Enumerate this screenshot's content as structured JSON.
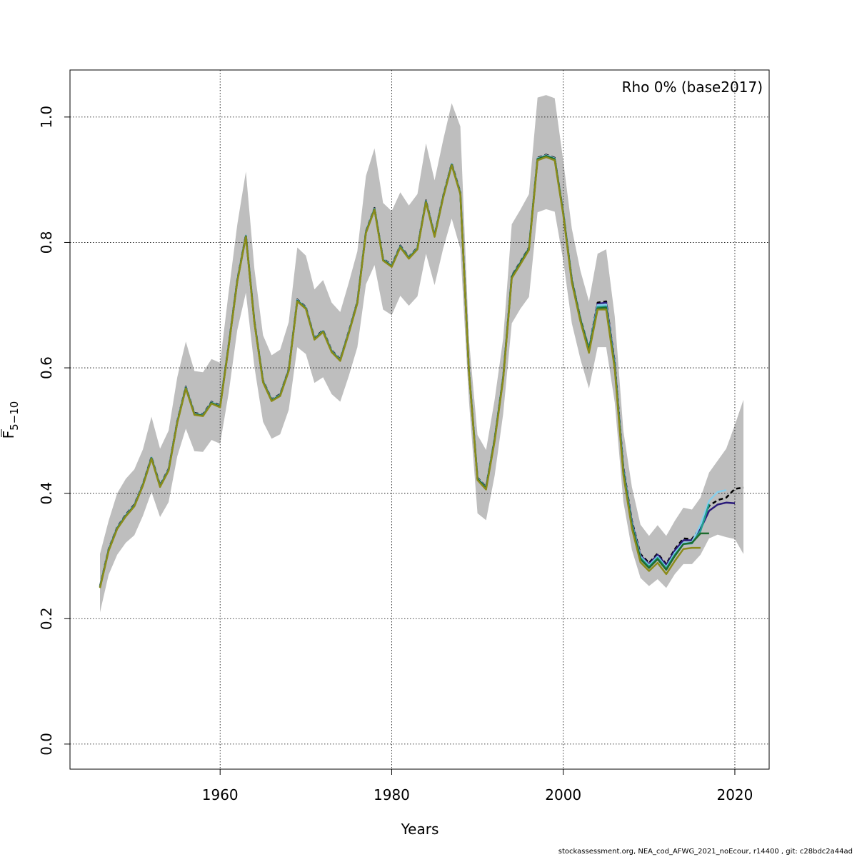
{
  "chart_data": {
    "type": "line",
    "title": "",
    "annotation": "Rho 0% (base2017)",
    "xlabel": "Years",
    "ylabel_main": "F",
    "ylabel_sub": "5−10",
    "xlim": [
      1942.5,
      2024.0
    ],
    "ylim": [
      -0.04,
      1.075
    ],
    "xticks": [
      1960,
      1980,
      2000,
      2020
    ],
    "xtick_labels": [
      "1960",
      "1980",
      "2000",
      "2020"
    ],
    "yticks": [
      0.0,
      0.2,
      0.4,
      0.6,
      0.8,
      1.0
    ],
    "ytick_labels": [
      "0.0",
      "0.2",
      "0.4",
      "0.6",
      "0.8",
      "1.0"
    ],
    "grid": true,
    "band": {
      "color": "#bebebe",
      "x": [
        1946,
        1947,
        1948,
        1949,
        1950,
        1951,
        1952,
        1953,
        1954,
        1955,
        1956,
        1957,
        1958,
        1959,
        1960,
        1961,
        1962,
        1963,
        1964,
        1965,
        1966,
        1967,
        1968,
        1969,
        1970,
        1971,
        1972,
        1973,
        1974,
        1975,
        1976,
        1977,
        1978,
        1979,
        1980,
        1981,
        1982,
        1983,
        1984,
        1985,
        1986,
        1987,
        1988,
        1989,
        1990,
        1991,
        1992,
        1993,
        1994,
        1995,
        1996,
        1997,
        1998,
        1999,
        2000,
        2001,
        2002,
        2003,
        2004,
        2005,
        2006,
        2007,
        2008,
        2009,
        2010,
        2011,
        2012,
        2013,
        2014,
        2015,
        2016,
        2017,
        2018,
        2019,
        2020,
        2021
      ],
      "upper": [
        0.303,
        0.356,
        0.4,
        0.423,
        0.438,
        0.47,
        0.522,
        0.471,
        0.5,
        0.585,
        0.642,
        0.595,
        0.593,
        0.614,
        0.608,
        0.721,
        0.828,
        0.913,
        0.757,
        0.652,
        0.62,
        0.629,
        0.673,
        0.792,
        0.779,
        0.725,
        0.74,
        0.704,
        0.689,
        0.736,
        0.786,
        0.906,
        0.95,
        0.863,
        0.85,
        0.88,
        0.859,
        0.877,
        0.958,
        0.899,
        0.963,
        1.022,
        0.985,
        0.646,
        0.493,
        0.469,
        0.549,
        0.647,
        0.829,
        0.852,
        0.877,
        1.031,
        1.035,
        1.03,
        0.93,
        0.822,
        0.755,
        0.706,
        0.782,
        0.789,
        0.682,
        0.5,
        0.41,
        0.35,
        0.332,
        0.349,
        0.332,
        0.356,
        0.377,
        0.374,
        0.393,
        0.433,
        0.452,
        0.471,
        0.509,
        0.549
      ],
      "lower": [
        0.21,
        0.27,
        0.302,
        0.321,
        0.333,
        0.364,
        0.402,
        0.362,
        0.386,
        0.459,
        0.503,
        0.467,
        0.466,
        0.485,
        0.479,
        0.56,
        0.66,
        0.72,
        0.601,
        0.514,
        0.487,
        0.494,
        0.533,
        0.633,
        0.622,
        0.576,
        0.585,
        0.558,
        0.546,
        0.587,
        0.633,
        0.733,
        0.764,
        0.693,
        0.684,
        0.715,
        0.699,
        0.714,
        0.782,
        0.732,
        0.79,
        0.838,
        0.79,
        0.548,
        0.368,
        0.357,
        0.428,
        0.527,
        0.671,
        0.694,
        0.713,
        0.848,
        0.853,
        0.849,
        0.771,
        0.671,
        0.614,
        0.567,
        0.633,
        0.633,
        0.545,
        0.387,
        0.31,
        0.265,
        0.252,
        0.263,
        0.249,
        0.271,
        0.287,
        0.287,
        0.302,
        0.328,
        0.334,
        0.33,
        0.327,
        0.303
      ]
    },
    "x": [
      1946,
      1947,
      1948,
      1949,
      1950,
      1951,
      1952,
      1953,
      1954,
      1955,
      1956,
      1957,
      1958,
      1959,
      1960,
      1961,
      1962,
      1963,
      1964,
      1965,
      1966,
      1967,
      1968,
      1969,
      1970,
      1971,
      1972,
      1973,
      1974,
      1975,
      1976,
      1977,
      1978,
      1979,
      1980,
      1981,
      1982,
      1983,
      1984,
      1985,
      1986,
      1987,
      1988,
      1989,
      1990,
      1991,
      1992,
      1993,
      1994,
      1995,
      1996,
      1997,
      1998,
      1999,
      2000,
      2001,
      2002,
      2003,
      2004,
      2005,
      2006,
      2007,
      2008,
      2009,
      2010,
      2011,
      2012,
      2013,
      2014,
      2015,
      2016,
      2017,
      2018,
      2019,
      2020,
      2021
    ],
    "series": [
      {
        "color": "#000000",
        "dashed": true,
        "width": 2.5,
        "values": [
          0.252,
          0.311,
          0.346,
          0.366,
          0.382,
          0.415,
          0.458,
          0.413,
          0.439,
          0.515,
          0.57,
          0.528,
          0.526,
          0.546,
          0.54,
          0.637,
          0.74,
          0.812,
          0.674,
          0.58,
          0.55,
          0.558,
          0.598,
          0.709,
          0.697,
          0.648,
          0.66,
          0.628,
          0.614,
          0.658,
          0.706,
          0.818,
          0.855,
          0.774,
          0.764,
          0.795,
          0.777,
          0.792,
          0.867,
          0.812,
          0.874,
          0.926,
          0.88,
          0.597,
          0.425,
          0.41,
          0.487,
          0.586,
          0.747,
          0.769,
          0.792,
          0.935,
          0.94,
          0.935,
          0.848,
          0.741,
          0.679,
          0.631,
          0.704,
          0.706,
          0.609,
          0.442,
          0.356,
          0.303,
          0.289,
          0.304,
          0.287,
          0.311,
          0.328,
          0.327,
          0.346,
          0.38,
          0.389,
          0.393,
          0.407,
          0.409
        ]
      },
      {
        "color": "#2a1a7a",
        "dashed": false,
        "width": 2.5,
        "values": [
          0.251,
          0.31,
          0.345,
          0.365,
          0.381,
          0.414,
          0.457,
          0.412,
          0.438,
          0.514,
          0.569,
          0.527,
          0.525,
          0.545,
          0.539,
          0.636,
          0.739,
          0.811,
          0.673,
          0.579,
          0.549,
          0.557,
          0.597,
          0.708,
          0.696,
          0.647,
          0.659,
          0.627,
          0.613,
          0.657,
          0.705,
          0.817,
          0.854,
          0.773,
          0.763,
          0.794,
          0.776,
          0.791,
          0.866,
          0.811,
          0.873,
          0.925,
          0.879,
          0.596,
          0.424,
          0.409,
          0.486,
          0.585,
          0.746,
          0.768,
          0.791,
          0.934,
          0.939,
          0.934,
          0.847,
          0.74,
          0.678,
          0.63,
          0.702,
          0.704,
          0.607,
          0.44,
          0.354,
          0.301,
          0.287,
          0.302,
          0.285,
          0.309,
          0.325,
          0.325,
          0.343,
          0.372,
          0.382,
          0.385,
          0.384,
          null
        ]
      },
      {
        "color": "#87ceeb",
        "dashed": false,
        "width": 2.5,
        "values": [
          0.251,
          0.31,
          0.345,
          0.365,
          0.381,
          0.414,
          0.457,
          0.412,
          0.438,
          0.514,
          0.569,
          0.527,
          0.525,
          0.545,
          0.539,
          0.636,
          0.739,
          0.811,
          0.673,
          0.579,
          0.549,
          0.557,
          0.597,
          0.708,
          0.696,
          0.647,
          0.659,
          0.627,
          0.613,
          0.657,
          0.705,
          0.817,
          0.854,
          0.773,
          0.763,
          0.794,
          0.776,
          0.791,
          0.866,
          0.811,
          0.873,
          0.925,
          0.879,
          0.596,
          0.424,
          0.409,
          0.486,
          0.585,
          0.746,
          0.768,
          0.791,
          0.934,
          0.939,
          0.934,
          0.847,
          0.74,
          0.678,
          0.63,
          0.7,
          0.701,
          0.605,
          0.438,
          0.352,
          0.299,
          0.285,
          0.299,
          0.282,
          0.305,
          0.321,
          0.322,
          0.35,
          0.388,
          0.402,
          0.405,
          null,
          null
        ]
      },
      {
        "color": "#20a090",
        "dashed": false,
        "width": 2.5,
        "values": [
          0.25,
          0.309,
          0.344,
          0.364,
          0.38,
          0.413,
          0.456,
          0.411,
          0.437,
          0.513,
          0.568,
          0.526,
          0.524,
          0.544,
          0.538,
          0.635,
          0.738,
          0.81,
          0.672,
          0.578,
          0.548,
          0.556,
          0.596,
          0.707,
          0.695,
          0.646,
          0.658,
          0.626,
          0.612,
          0.656,
          0.704,
          0.816,
          0.853,
          0.772,
          0.762,
          0.793,
          0.775,
          0.79,
          0.865,
          0.81,
          0.872,
          0.924,
          0.878,
          0.595,
          0.423,
          0.408,
          0.485,
          0.584,
          0.745,
          0.767,
          0.79,
          0.933,
          0.938,
          0.933,
          0.846,
          0.739,
          0.677,
          0.629,
          0.697,
          0.698,
          0.603,
          0.436,
          0.35,
          0.297,
          0.283,
          0.297,
          0.28,
          0.302,
          0.319,
          0.32,
          0.34,
          0.383,
          null,
          null,
          null,
          null
        ]
      },
      {
        "color": "#1e6b2e",
        "dashed": false,
        "width": 2.5,
        "values": [
          0.25,
          0.309,
          0.344,
          0.364,
          0.38,
          0.413,
          0.456,
          0.411,
          0.437,
          0.513,
          0.568,
          0.526,
          0.524,
          0.544,
          0.538,
          0.635,
          0.738,
          0.81,
          0.672,
          0.578,
          0.548,
          0.556,
          0.596,
          0.707,
          0.695,
          0.646,
          0.658,
          0.626,
          0.612,
          0.656,
          0.704,
          0.816,
          0.853,
          0.772,
          0.762,
          0.793,
          0.775,
          0.79,
          0.865,
          0.81,
          0.872,
          0.924,
          0.878,
          0.595,
          0.423,
          0.408,
          0.485,
          0.584,
          0.745,
          0.767,
          0.79,
          0.933,
          0.938,
          0.933,
          0.846,
          0.739,
          0.677,
          0.628,
          0.695,
          0.696,
          0.601,
          0.434,
          0.348,
          0.295,
          0.281,
          0.295,
          0.278,
          0.3,
          0.319,
          0.321,
          0.336,
          0.336,
          null,
          null,
          null,
          null
        ]
      },
      {
        "color": "#8b8b1a",
        "dashed": false,
        "width": 2.5,
        "values": [
          0.249,
          0.308,
          0.343,
          0.363,
          0.379,
          0.412,
          0.455,
          0.41,
          0.436,
          0.512,
          0.567,
          0.525,
          0.523,
          0.543,
          0.537,
          0.634,
          0.737,
          0.809,
          0.671,
          0.577,
          0.547,
          0.555,
          0.595,
          0.706,
          0.694,
          0.645,
          0.657,
          0.625,
          0.611,
          0.655,
          0.703,
          0.815,
          0.852,
          0.771,
          0.761,
          0.792,
          0.774,
          0.789,
          0.864,
          0.809,
          0.871,
          0.923,
          0.877,
          0.594,
          0.421,
          0.406,
          0.483,
          0.582,
          0.743,
          0.765,
          0.788,
          0.931,
          0.936,
          0.931,
          0.844,
          0.736,
          0.674,
          0.624,
          0.693,
          0.693,
          0.598,
          0.43,
          0.344,
          0.29,
          0.276,
          0.289,
          0.271,
          0.292,
          0.311,
          0.313,
          0.313,
          null,
          null,
          null,
          null,
          null
        ]
      }
    ]
  },
  "footer": "stockassessment.org, NEA_cod_AFWG_2021_noEcour, r14400 , git: c28bdc2a44ad"
}
